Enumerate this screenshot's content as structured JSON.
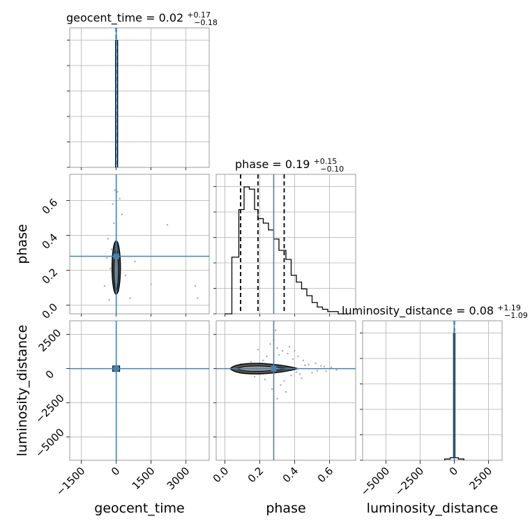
{
  "chart_data": {
    "type": "corner",
    "parameters": [
      "geocent_time",
      "phase",
      "luminosity_distance"
    ],
    "truth_color": "#4682b4",
    "truths": {
      "geocent_time": 0,
      "phase": 0.28,
      "luminosity_distance": 0
    },
    "axes_ranges": {
      "geocent_time": [
        -2000,
        4000
      ],
      "phase": [
        -0.05,
        0.75
      ],
      "luminosity_distance": [
        -6700,
        3500
      ]
    },
    "ticks": {
      "geocent_time": {
        "values": [
          -1500,
          0,
          1500,
          3000
        ],
        "labels": [
          "−1500",
          "0",
          "1500",
          "3000"
        ]
      },
      "phase": {
        "values": [
          0.0,
          0.2,
          0.4,
          0.6
        ],
        "labels": [
          "0.0",
          "0.2",
          "0.4",
          "0.6"
        ]
      },
      "luminosity_distance": {
        "values": [
          -5000,
          -2500,
          0,
          2500
        ],
        "labels": [
          "−5000",
          "−2500",
          "0",
          "2500"
        ]
      }
    },
    "diag_x_ticks": {
      "luminosity_distance": {
        "values": [
          -5000,
          -2500,
          0,
          2500
        ],
        "labels": [
          "−5000",
          "−2500",
          "0",
          "2500"
        ]
      }
    },
    "titles": [
      {
        "param": "geocent_time",
        "text": "geocent_time = 0.02",
        "plus": "+0.17",
        "minus": "−0.18"
      },
      {
        "param": "phase",
        "text": "phase = 0.19",
        "plus": "+0.15",
        "minus": "−0.10"
      },
      {
        "param": "luminosity_distance",
        "text": "luminosity_distance = 0.08",
        "plus": "+1.19",
        "minus": "−1.09"
      }
    ],
    "quantiles": {
      "geocent_time": [
        -0.16,
        0.02,
        0.19
      ],
      "phase": [
        0.09,
        0.19,
        0.34
      ],
      "luminosity_distance": [
        -1.01,
        0.08,
        1.27
      ]
    },
    "histograms": {
      "geocent_time": {
        "edges": [
          -30,
          0,
          60
        ],
        "counts": [
          1,
          1
        ]
      },
      "phase": {
        "edges": [
          0.0,
          0.04,
          0.08,
          0.11,
          0.14,
          0.17,
          0.19,
          0.22,
          0.25,
          0.28,
          0.31,
          0.35,
          0.38,
          0.41,
          0.44,
          0.47,
          0.5,
          0.53,
          0.56,
          0.59,
          0.62,
          0.65,
          0.7
        ],
        "counts": [
          0,
          25,
          46,
          56,
          55,
          46,
          42,
          40,
          37,
          33,
          28,
          24,
          17,
          14,
          11,
          8,
          5,
          3,
          2,
          1,
          1,
          0
        ]
      },
      "luminosity_distance": {
        "edges": [
          -700,
          -300,
          -50,
          50,
          300,
          700
        ],
        "counts": [
          1,
          2,
          100,
          2,
          1
        ]
      }
    },
    "scatter_points": {
      "phase_vs_geocent_time": [
        [
          -100,
          0.47
        ],
        [
          -200,
          0.32
        ],
        [
          -350,
          0.38
        ],
        [
          -500,
          0.11
        ],
        [
          -300,
          0.03
        ],
        [
          100,
          0.08
        ],
        [
          800,
          0.25
        ],
        [
          1500,
          0.12
        ],
        [
          2200,
          0.46
        ],
        [
          3400,
          0.11
        ],
        [
          3500,
          0.04
        ],
        [
          -150,
          0.58
        ],
        [
          150,
          0.61
        ],
        [
          60,
          0.65
        ],
        [
          -60,
          0.66
        ],
        [
          250,
          0.52
        ],
        [
          -250,
          0.21
        ],
        [
          400,
          0.17
        ],
        [
          -400,
          0.27
        ],
        [
          600,
          0.04
        ]
      ],
      "luminosity_distance_vs_phase": [
        [
          0.26,
          1800
        ],
        [
          0.28,
          2100
        ],
        [
          0.3,
          1500
        ],
        [
          0.33,
          1300
        ],
        [
          0.31,
          1000
        ],
        [
          0.24,
          900
        ],
        [
          0.36,
          1100
        ],
        [
          0.39,
          700
        ],
        [
          0.42,
          900
        ],
        [
          0.45,
          600
        ],
        [
          0.22,
          600
        ],
        [
          0.19,
          1400
        ],
        [
          0.29,
          2800
        ],
        [
          0.32,
          -1200
        ],
        [
          0.27,
          -1500
        ],
        [
          0.34,
          -900
        ],
        [
          0.38,
          -500
        ],
        [
          0.43,
          -400
        ],
        [
          0.48,
          300
        ],
        [
          0.52,
          400
        ],
        [
          0.55,
          200
        ],
        [
          0.58,
          -200
        ],
        [
          0.61,
          100
        ],
        [
          0.64,
          -100
        ],
        [
          0.5,
          -300
        ],
        [
          0.46,
          250
        ],
        [
          0.41,
          -250
        ],
        [
          0.23,
          -800
        ],
        [
          0.17,
          -600
        ],
        [
          0.15,
          500
        ],
        [
          0.12,
          -300
        ],
        [
          0.09,
          350
        ],
        [
          0.06,
          -200
        ],
        [
          0.37,
          1600
        ],
        [
          0.35,
          -1700
        ],
        [
          0.3,
          -2200
        ],
        [
          0.44,
          -700
        ],
        [
          0.4,
          1300
        ],
        [
          0.53,
          -150
        ],
        [
          0.57,
          150
        ]
      ]
    },
    "x_labels": [
      "geocent_time",
      "phase",
      "luminosity_distance"
    ],
    "y_labels": [
      "phase",
      "luminosity_distance"
    ],
    "grid": true
  }
}
